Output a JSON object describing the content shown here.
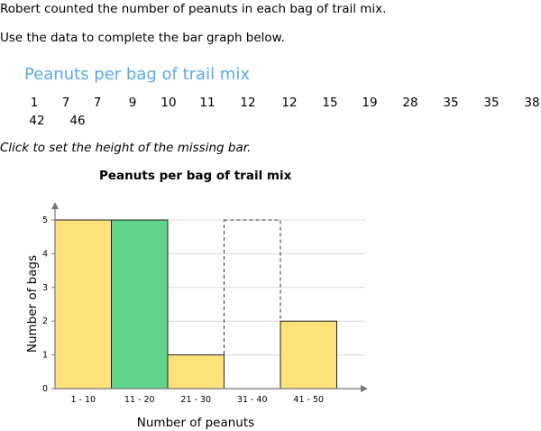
{
  "prompt": {
    "line1": "Robert counted the number of peanuts in each bag of trail mix.",
    "line2": "Use the data to complete the bar graph below.",
    "instruction": "Click to set the height of the missing bar."
  },
  "dataset": {
    "title": "Peanuts per bag of trail mix",
    "values": [
      "1",
      "7",
      "7",
      "9",
      "10",
      "11",
      "12",
      "12",
      "15",
      "19",
      "28",
      "35",
      "35",
      "38",
      "42",
      "46"
    ]
  },
  "chart_data": {
    "type": "bar",
    "title": "Peanuts per bag of trail mix",
    "xlabel": "Number of peanuts",
    "ylabel": "Number of bags",
    "categories": [
      "1 - 10",
      "11 - 20",
      "21 - 30",
      "31 - 40",
      "41 - 50"
    ],
    "values": [
      5,
      5,
      1,
      null,
      2
    ],
    "bar_colors": [
      "#ffe27a",
      "#5fd48a",
      "#ffe27a",
      "none",
      "#ffe27a"
    ],
    "missing_bar_index": 3,
    "missing_bar_placeholder": 5,
    "y_ticks": [
      "0",
      "1",
      "2",
      "3",
      "4",
      "5"
    ],
    "ylim": [
      0,
      5
    ],
    "grid": true
  }
}
